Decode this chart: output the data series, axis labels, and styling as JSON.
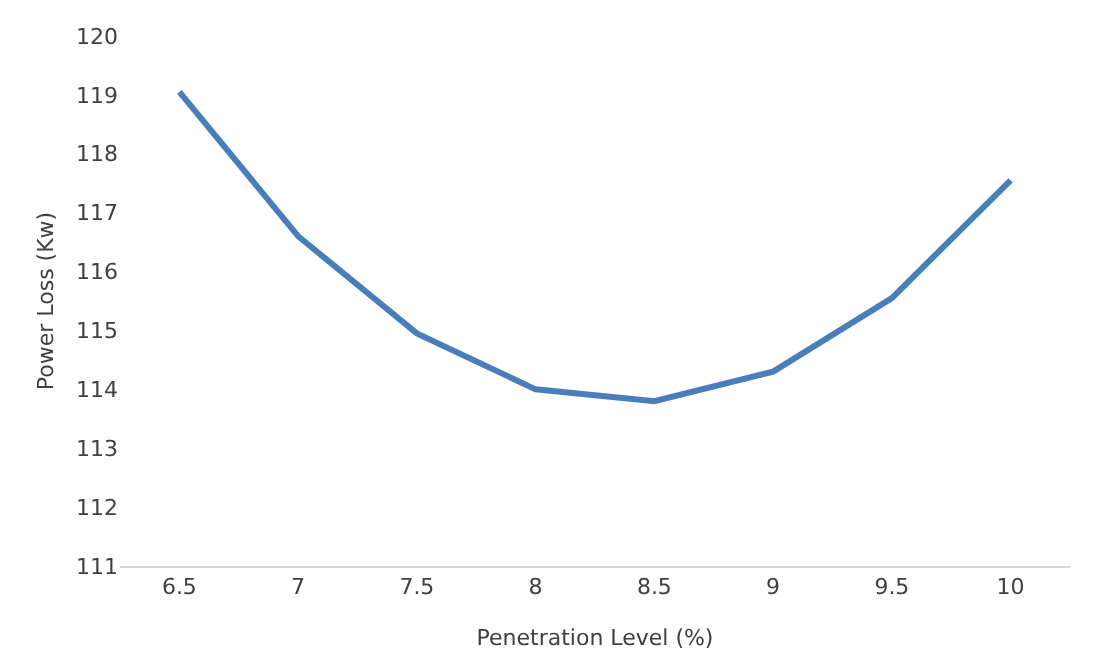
{
  "chart_data": {
    "type": "line",
    "xlabel": "Penetration Level (%)",
    "ylabel": "Power Loss (Kw)",
    "categories": [
      "6.5",
      "7",
      "7.5",
      "8",
      "8.5",
      "9",
      "9.5",
      "10"
    ],
    "series": [
      {
        "color": "#4a7ebb",
        "values": [
          119.05,
          116.6,
          114.95,
          114.0,
          113.8,
          114.3,
          115.55,
          117.55
        ]
      }
    ],
    "ylim": [
      111,
      120
    ],
    "yticks": [
      111,
      112,
      113,
      114,
      115,
      116,
      117,
      118,
      119,
      120
    ],
    "line_style": "solid"
  }
}
